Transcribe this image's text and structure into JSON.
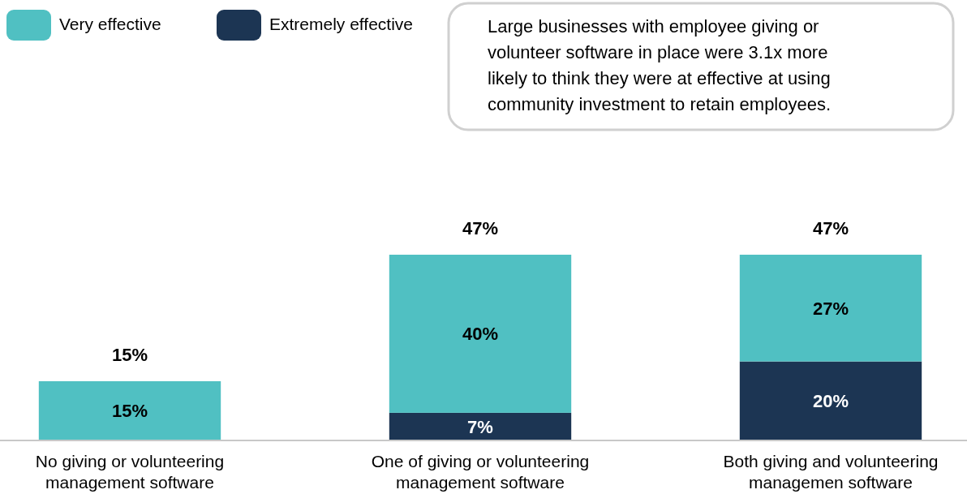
{
  "chart_data": {
    "type": "bar",
    "stacked": true,
    "categories": [
      "No giving or volunteering management software",
      "One of giving or volunteering management software",
      "Both giving and volunteering managemen software"
    ],
    "series": [
      {
        "name": "Extremely effective",
        "color": "#1c3553",
        "values": [
          0,
          7,
          20
        ],
        "value_labels": [
          null,
          "7%",
          "20%"
        ]
      },
      {
        "name": "Very effective",
        "color": "#50c0c2",
        "values": [
          15,
          40,
          27
        ],
        "value_labels": [
          "15%",
          "40%",
          "27%"
        ]
      }
    ],
    "totals": [
      "15%",
      "47%",
      "47%"
    ],
    "legend": "top left",
    "annotations": [
      "Large businesses with employee giving or volunteer software in place were 3.1x more likely to think they were at effective at using community investment to retain employees."
    ]
  }
}
